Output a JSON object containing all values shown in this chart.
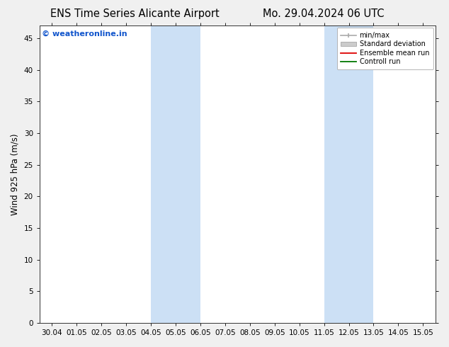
{
  "title_left": "ENS Time Series Alicante Airport",
  "title_right": "Mo. 29.04.2024 06 UTC",
  "ylabel": "Wind 925 hPa (m/s)",
  "xlabels": [
    "30.04",
    "01.05",
    "02.05",
    "03.05",
    "04.05",
    "05.05",
    "06.05",
    "07.05",
    "08.05",
    "09.05",
    "10.05",
    "11.05",
    "12.05",
    "13.05",
    "14.05",
    "15.05"
  ],
  "ylim": [
    0,
    47
  ],
  "yticks": [
    0,
    5,
    10,
    15,
    20,
    25,
    30,
    35,
    40,
    45
  ],
  "bg_color": "#f0f0f0",
  "plot_bg_color": "#ffffff",
  "shaded_bands": [
    {
      "xstart": 4,
      "xend": 6,
      "color": "#cce0f5"
    },
    {
      "xstart": 11,
      "xend": 13,
      "color": "#cce0f5"
    }
  ],
  "watermark_text": "© weatheronline.in",
  "watermark_color": "#1155cc",
  "legend_labels": [
    "min/max",
    "Standard deviation",
    "Ensemble mean run",
    "Controll run"
  ],
  "legend_colors": [
    "#aaaaaa",
    "#cccccc",
    "#dd0000",
    "#007700"
  ],
  "tick_label_fontsize": 7.5,
  "axis_label_fontsize": 8.5,
  "title_fontsize": 10.5
}
